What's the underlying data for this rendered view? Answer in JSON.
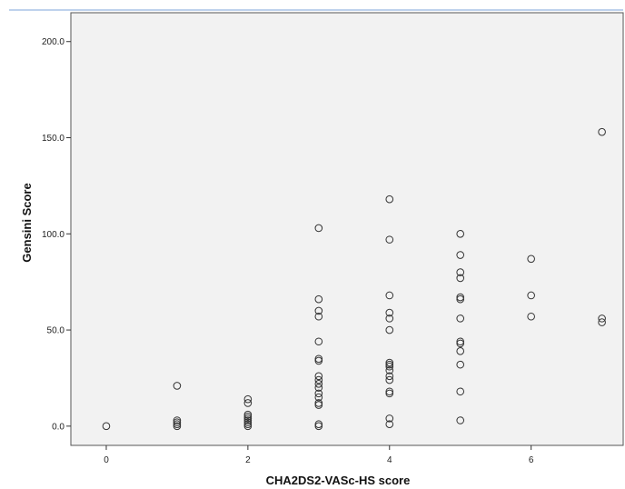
{
  "chart_data": {
    "type": "scatter",
    "title": "",
    "xlabel": "CHA2DS2-VASc-HS score",
    "ylabel": "Gensini Score",
    "xlim": [
      -0.5,
      7.3
    ],
    "ylim": [
      -10,
      215
    ],
    "x_ticks": [
      {
        "value": 0,
        "label": "0"
      },
      {
        "value": 2,
        "label": "2"
      },
      {
        "value": 4,
        "label": "4"
      },
      {
        "value": 6,
        "label": "6"
      }
    ],
    "y_ticks": [
      {
        "value": 0,
        "label": "0.0"
      },
      {
        "value": 50,
        "label": "50.0"
      },
      {
        "value": 100,
        "label": "100.0"
      },
      {
        "value": 150,
        "label": "150.0"
      },
      {
        "value": 200,
        "label": "200.0"
      }
    ],
    "grid": false,
    "legend": "none",
    "colors": {
      "plot_background": "#f2f2f2",
      "marker_stroke": "#333333",
      "frame_border": "#7ea6d8"
    },
    "points": [
      {
        "x": 0,
        "y": 0
      },
      {
        "x": 1,
        "y": 0
      },
      {
        "x": 1,
        "y": 1
      },
      {
        "x": 1,
        "y": 2
      },
      {
        "x": 1,
        "y": 3
      },
      {
        "x": 1,
        "y": 21
      },
      {
        "x": 2,
        "y": 0
      },
      {
        "x": 2,
        "y": 1
      },
      {
        "x": 2,
        "y": 2
      },
      {
        "x": 2,
        "y": 3
      },
      {
        "x": 2,
        "y": 4
      },
      {
        "x": 2,
        "y": 5
      },
      {
        "x": 2,
        "y": 6
      },
      {
        "x": 2,
        "y": 12
      },
      {
        "x": 2,
        "y": 14
      },
      {
        "x": 3,
        "y": 0
      },
      {
        "x": 3,
        "y": 1
      },
      {
        "x": 3,
        "y": 11
      },
      {
        "x": 3,
        "y": 12
      },
      {
        "x": 3,
        "y": 15
      },
      {
        "x": 3,
        "y": 17
      },
      {
        "x": 3,
        "y": 20
      },
      {
        "x": 3,
        "y": 22
      },
      {
        "x": 3,
        "y": 24
      },
      {
        "x": 3,
        "y": 26
      },
      {
        "x": 3,
        "y": 34
      },
      {
        "x": 3,
        "y": 35
      },
      {
        "x": 3,
        "y": 44
      },
      {
        "x": 3,
        "y": 57
      },
      {
        "x": 3,
        "y": 60
      },
      {
        "x": 3,
        "y": 66
      },
      {
        "x": 3,
        "y": 103
      },
      {
        "x": 4,
        "y": 1
      },
      {
        "x": 4,
        "y": 4
      },
      {
        "x": 4,
        "y": 17
      },
      {
        "x": 4,
        "y": 18
      },
      {
        "x": 4,
        "y": 24
      },
      {
        "x": 4,
        "y": 26
      },
      {
        "x": 4,
        "y": 29
      },
      {
        "x": 4,
        "y": 31
      },
      {
        "x": 4,
        "y": 32
      },
      {
        "x": 4,
        "y": 33
      },
      {
        "x": 4,
        "y": 50
      },
      {
        "x": 4,
        "y": 56
      },
      {
        "x": 4,
        "y": 59
      },
      {
        "x": 4,
        "y": 68
      },
      {
        "x": 4,
        "y": 97
      },
      {
        "x": 4,
        "y": 118
      },
      {
        "x": 5,
        "y": 3
      },
      {
        "x": 5,
        "y": 18
      },
      {
        "x": 5,
        "y": 32
      },
      {
        "x": 5,
        "y": 39
      },
      {
        "x": 5,
        "y": 43
      },
      {
        "x": 5,
        "y": 44
      },
      {
        "x": 5,
        "y": 56
      },
      {
        "x": 5,
        "y": 66
      },
      {
        "x": 5,
        "y": 67
      },
      {
        "x": 5,
        "y": 77
      },
      {
        "x": 5,
        "y": 80
      },
      {
        "x": 5,
        "y": 89
      },
      {
        "x": 5,
        "y": 100
      },
      {
        "x": 6,
        "y": 57
      },
      {
        "x": 6,
        "y": 68
      },
      {
        "x": 6,
        "y": 87
      },
      {
        "x": 7,
        "y": 54
      },
      {
        "x": 7,
        "y": 56
      },
      {
        "x": 7,
        "y": 153
      }
    ]
  }
}
